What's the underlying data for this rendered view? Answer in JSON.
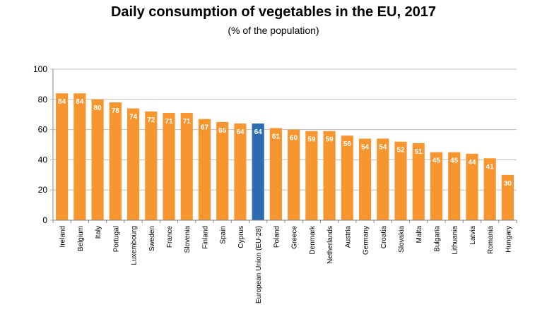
{
  "chart_data": {
    "type": "bar",
    "title": "Daily consumption of vegetables in the EU, 2017",
    "subtitle": "(% of the population)",
    "categories": [
      "Ireland",
      "Belgium",
      "Italy",
      "Portugal",
      "Luxembourg",
      "Sweden",
      "France",
      "Slovenia",
      "Finland",
      "Spain",
      "Cyprus",
      "European Union (EU-28)",
      "Poland",
      "Greece",
      "Denmark",
      "Netherlands",
      "Austria",
      "Germany",
      "Croatia",
      "Slovakia",
      "Malta",
      "Bulgaria",
      "Lithuania",
      "Latvia",
      "Romania",
      "Hungary"
    ],
    "values": [
      84,
      84,
      80,
      78,
      74,
      72,
      71,
      71,
      67,
      65,
      64,
      64,
      61,
      60,
      59,
      59,
      56,
      54,
      54,
      52,
      51,
      45,
      45,
      44,
      41,
      30
    ],
    "highlight": "European Union (EU-28)",
    "ylim": [
      0,
      100
    ],
    "yticks": [
      0,
      20,
      40,
      60,
      80,
      100
    ],
    "grid": true,
    "colors": {
      "bar": "#F7962F",
      "highlight": "#2D6BAE",
      "grid": "#BFBFBF",
      "label": "#FFFFFF"
    }
  }
}
